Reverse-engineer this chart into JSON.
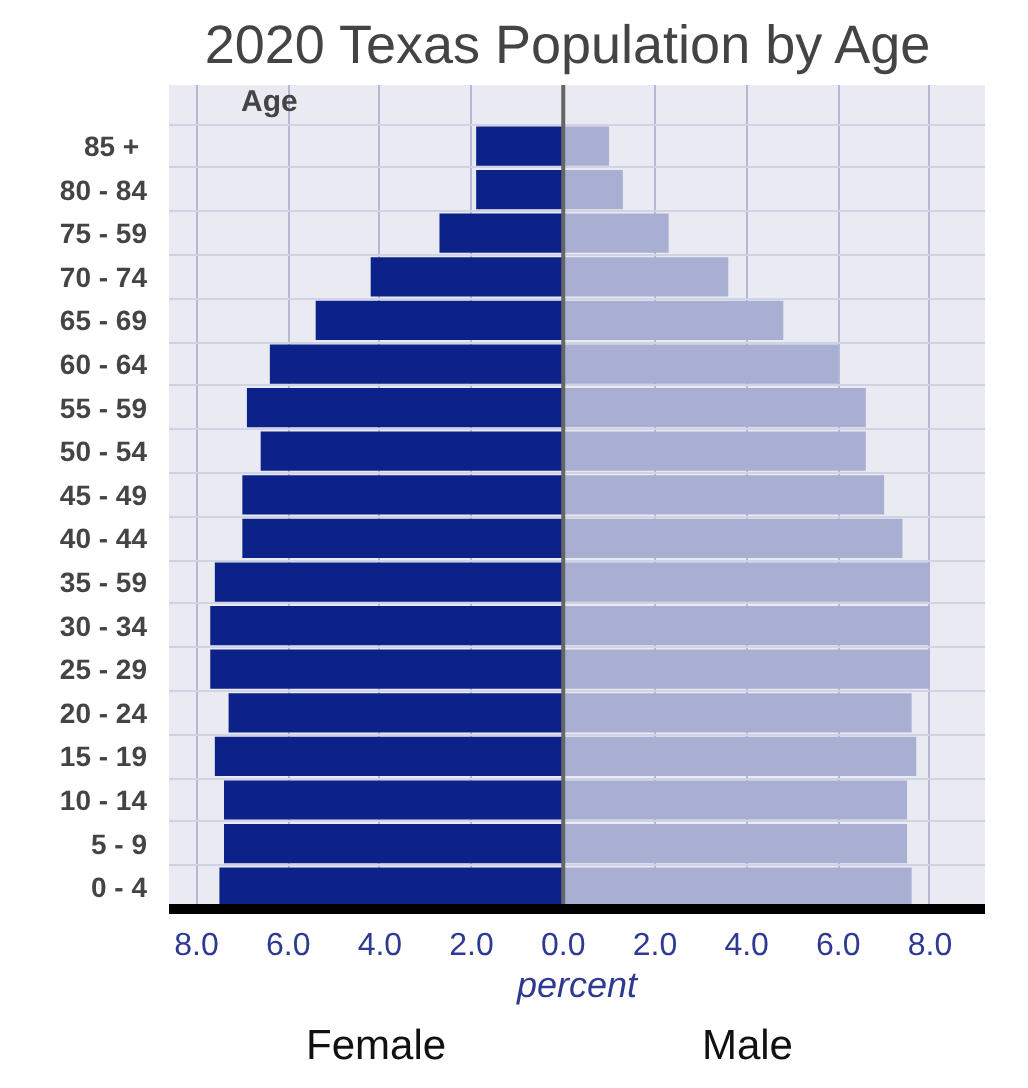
{
  "chart_data": {
    "type": "bar",
    "orientation": "horizontal",
    "title": "2020  Texas Population by Age",
    "xlabel": "percent",
    "ylabel": "Age",
    "categories": [
      "85  +",
      "80 - 84",
      "75 - 59",
      "70 - 74",
      "65 - 69",
      "60 - 64",
      "55 - 59",
      "50 - 54",
      "45 - 49",
      "40 - 44",
      "35 - 59",
      "30 - 34",
      "25 - 29",
      "20 - 24",
      "15 - 19",
      "10 - 14",
      "5 - 9",
      "0 - 4"
    ],
    "series": [
      {
        "name": "Female",
        "color": "#0d2289",
        "values": [
          -1.9,
          -1.9,
          -2.7,
          -4.2,
          -5.4,
          -6.4,
          -6.9,
          -6.6,
          -7.0,
          -7.0,
          -7.6,
          -7.7,
          -7.7,
          -7.3,
          -7.6,
          -7.4,
          -7.4,
          -7.5
        ]
      },
      {
        "name": "Male",
        "color": "#a9aed3",
        "values": [
          1.0,
          1.3,
          2.3,
          3.6,
          4.8,
          6.0,
          6.6,
          6.6,
          7.0,
          7.4,
          8.0,
          8.0,
          8.0,
          7.6,
          7.7,
          7.5,
          7.5,
          7.6
        ]
      }
    ],
    "xlim": [
      -8.6,
      9.2
    ],
    "xticks": [
      {
        "value": -8,
        "label": "8.0"
      },
      {
        "value": -6,
        "label": "6.0"
      },
      {
        "value": -4,
        "label": "4.0"
      },
      {
        "value": -2,
        "label": "2.0"
      },
      {
        "value": 0,
        "label": "0.0"
      },
      {
        "value": 2,
        "label": "2.0"
      },
      {
        "value": 4,
        "label": "4.0"
      },
      {
        "value": 6,
        "label": "6.0"
      },
      {
        "value": 8,
        "label": "8.0"
      }
    ],
    "grid": true,
    "stacked": true
  }
}
